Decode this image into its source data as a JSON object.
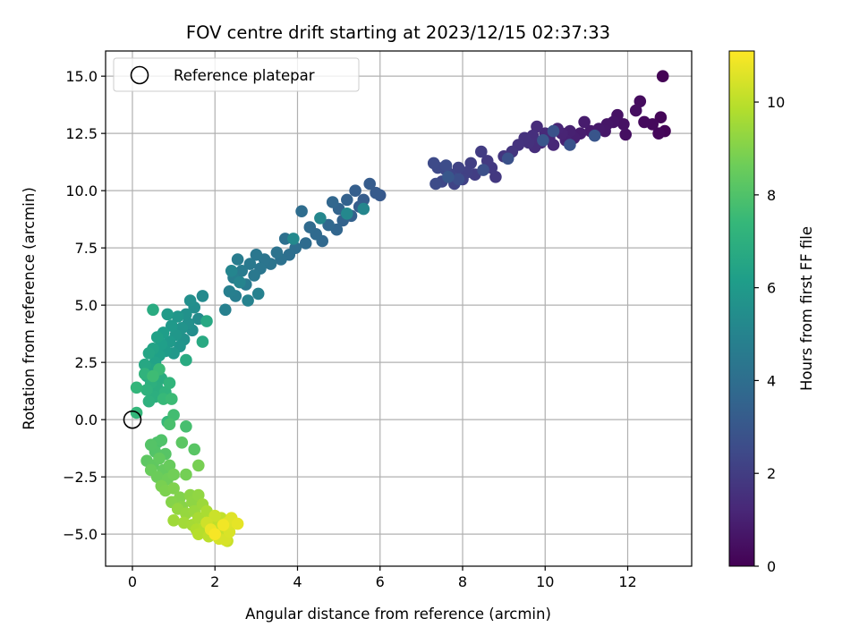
{
  "chart_data": {
    "type": "scatter",
    "title": "FOV centre drift starting at 2023/12/15 02:37:33",
    "xlabel": "Angular distance from reference (arcmin)",
    "ylabel": "Rotation from reference (arcmin)",
    "xlim": [
      -0.65,
      13.55
    ],
    "ylim": [
      -6.4,
      16.1
    ],
    "xticks": [
      0,
      2,
      4,
      6,
      8,
      10,
      12
    ],
    "yticks": [
      -5.0,
      -2.5,
      0.0,
      2.5,
      5.0,
      7.5,
      10.0,
      12.5,
      15.0
    ],
    "xtick_labels": [
      "0",
      "2",
      "4",
      "6",
      "8",
      "10",
      "12"
    ],
    "ytick_labels": [
      "−5.0",
      "−2.5",
      "0.0",
      "2.5",
      "5.0",
      "7.5",
      "10.0",
      "12.5",
      "15.0"
    ],
    "grid": true,
    "legend": {
      "placement": "top-left",
      "entries": [
        "Reference platepar"
      ]
    },
    "reference_point": {
      "x": 0,
      "y": 0
    },
    "colorbar": {
      "label": "Hours from first FF file",
      "colormap": "viridis",
      "range": [
        0,
        11.1
      ],
      "ticks": [
        0,
        2,
        4,
        6,
        8,
        10
      ],
      "tick_labels": [
        "0",
        "2",
        "4",
        "6",
        "8",
        "10"
      ]
    },
    "series": [
      {
        "values_format": "[x, y, hours]",
        "points": [
          [
            12.85,
            15.0,
            0.05
          ],
          [
            12.9,
            12.6,
            0.1
          ],
          [
            12.8,
            13.2,
            0.15
          ],
          [
            12.75,
            12.5,
            0.2
          ],
          [
            12.6,
            12.9,
            0.25
          ],
          [
            12.4,
            13.0,
            0.3
          ],
          [
            12.3,
            13.9,
            0.35
          ],
          [
            12.2,
            13.5,
            0.4
          ],
          [
            11.95,
            12.45,
            0.45
          ],
          [
            11.9,
            12.9,
            0.5
          ],
          [
            11.75,
            13.3,
            0.55
          ],
          [
            11.65,
            13.0,
            0.6
          ],
          [
            11.5,
            12.9,
            0.65
          ],
          [
            11.45,
            12.6,
            0.7
          ],
          [
            11.3,
            12.7,
            0.75
          ],
          [
            11.1,
            12.6,
            0.8
          ],
          [
            10.95,
            13.0,
            0.85
          ],
          [
            10.85,
            12.5,
            0.9
          ],
          [
            10.7,
            12.3,
            0.95
          ],
          [
            10.6,
            12.6,
            1.0
          ],
          [
            10.5,
            12.2,
            1.05
          ],
          [
            10.4,
            12.5,
            1.1
          ],
          [
            10.3,
            12.7,
            1.15
          ],
          [
            10.2,
            12.0,
            1.2
          ],
          [
            10.1,
            12.3,
            1.25
          ],
          [
            10.0,
            12.5,
            1.3
          ],
          [
            9.9,
            12.1,
            1.35
          ],
          [
            9.8,
            12.8,
            1.4
          ],
          [
            9.75,
            11.9,
            1.45
          ],
          [
            9.7,
            12.4,
            1.5
          ],
          [
            9.6,
            12.1,
            1.55
          ],
          [
            9.5,
            12.3,
            1.6
          ],
          [
            9.35,
            12.0,
            1.65
          ],
          [
            9.2,
            11.7,
            1.7
          ],
          [
            9.0,
            11.5,
            1.75
          ],
          [
            8.8,
            10.6,
            1.8
          ],
          [
            8.7,
            11.0,
            1.85
          ],
          [
            8.6,
            11.3,
            1.9
          ],
          [
            8.45,
            11.7,
            1.95
          ],
          [
            8.3,
            10.7,
            2.0
          ],
          [
            8.2,
            11.2,
            2.05
          ],
          [
            8.1,
            10.8,
            2.1
          ],
          [
            8.0,
            10.5,
            2.15
          ],
          [
            7.9,
            11.0,
            2.2
          ],
          [
            7.8,
            10.3,
            2.25
          ],
          [
            7.7,
            10.7,
            2.3
          ],
          [
            7.6,
            10.9,
            2.35
          ],
          [
            7.5,
            10.4,
            2.4
          ],
          [
            7.4,
            11.0,
            2.45
          ],
          [
            7.3,
            11.2,
            2.5
          ],
          [
            7.35,
            10.3,
            2.55
          ],
          [
            7.6,
            11.1,
            2.6
          ],
          [
            7.9,
            10.5,
            2.65
          ],
          [
            8.5,
            10.9,
            2.7
          ],
          [
            9.1,
            11.4,
            2.75
          ],
          [
            10.2,
            12.6,
            2.8
          ],
          [
            10.6,
            12.0,
            2.85
          ],
          [
            11.2,
            12.4,
            2.9
          ],
          [
            9.95,
            12.2,
            2.95
          ],
          [
            7.65,
            10.6,
            3.0
          ],
          [
            6.0,
            9.8,
            3.1
          ],
          [
            5.9,
            9.9,
            3.15
          ],
          [
            5.75,
            10.3,
            3.2
          ],
          [
            5.6,
            9.6,
            3.25
          ],
          [
            5.5,
            9.3,
            3.3
          ],
          [
            5.4,
            10.0,
            3.35
          ],
          [
            5.3,
            8.9,
            3.4
          ],
          [
            5.2,
            9.6,
            3.45
          ],
          [
            5.1,
            8.7,
            3.5
          ],
          [
            5.0,
            9.2,
            3.55
          ],
          [
            4.95,
            8.3,
            3.6
          ],
          [
            4.85,
            9.5,
            3.65
          ],
          [
            4.75,
            8.5,
            3.7
          ],
          [
            4.6,
            7.8,
            3.75
          ],
          [
            4.45,
            8.1,
            3.8
          ],
          [
            4.3,
            8.4,
            3.85
          ],
          [
            4.2,
            7.7,
            3.9
          ],
          [
            4.1,
            9.1,
            3.95
          ],
          [
            3.95,
            7.5,
            4.0
          ],
          [
            3.8,
            7.2,
            4.05
          ],
          [
            3.7,
            7.9,
            4.1
          ],
          [
            3.6,
            7.0,
            4.15
          ],
          [
            3.5,
            7.3,
            4.2
          ],
          [
            3.35,
            6.8,
            4.25
          ],
          [
            3.2,
            7.0,
            4.3
          ],
          [
            3.1,
            6.6,
            4.35
          ],
          [
            3.0,
            7.2,
            4.4
          ],
          [
            2.95,
            6.3,
            4.45
          ],
          [
            2.85,
            6.8,
            4.5
          ],
          [
            2.75,
            5.9,
            4.55
          ],
          [
            2.65,
            6.5,
            4.6
          ],
          [
            2.55,
            7.0,
            4.65
          ],
          [
            2.5,
            5.4,
            4.7
          ],
          [
            2.45,
            6.2,
            4.75
          ],
          [
            2.35,
            5.6,
            4.8
          ],
          [
            2.25,
            4.8,
            4.85
          ],
          [
            3.05,
            5.5,
            4.9
          ],
          [
            2.8,
            5.2,
            4.95
          ],
          [
            2.6,
            6.0,
            5.0
          ],
          [
            2.4,
            6.5,
            5.05
          ],
          [
            5.6,
            9.2,
            5.1
          ],
          [
            4.55,
            8.8,
            5.15
          ],
          [
            5.2,
            9.0,
            5.2
          ],
          [
            3.9,
            7.9,
            5.25
          ],
          [
            1.7,
            5.4,
            5.3
          ],
          [
            1.6,
            4.4,
            5.35
          ],
          [
            1.5,
            4.9,
            5.4
          ],
          [
            1.45,
            3.9,
            5.45
          ],
          [
            1.4,
            5.2,
            5.5
          ],
          [
            1.35,
            4.2,
            5.55
          ],
          [
            1.3,
            4.6,
            5.6
          ],
          [
            1.25,
            3.5,
            5.65
          ],
          [
            1.2,
            4.0,
            5.7
          ],
          [
            1.15,
            3.2,
            5.75
          ],
          [
            1.1,
            4.5,
            5.8
          ],
          [
            1.05,
            3.7,
            5.85
          ],
          [
            1.0,
            2.9,
            5.9
          ],
          [
            0.95,
            4.1,
            5.95
          ],
          [
            0.9,
            3.4,
            6.0
          ],
          [
            0.85,
            4.6,
            6.05
          ],
          [
            0.8,
            3.0,
            6.1
          ],
          [
            0.75,
            3.8,
            6.15
          ],
          [
            0.7,
            3.3,
            6.2
          ],
          [
            0.65,
            2.8,
            6.25
          ],
          [
            0.6,
            3.6,
            6.3
          ],
          [
            0.55,
            2.5,
            6.35
          ],
          [
            0.5,
            3.1,
            6.4
          ],
          [
            0.45,
            2.2,
            6.45
          ],
          [
            0.4,
            2.9,
            6.5
          ],
          [
            0.35,
            1.9,
            6.55
          ],
          [
            0.3,
            2.4,
            6.6
          ],
          [
            1.8,
            4.3,
            6.65
          ],
          [
            1.7,
            3.4,
            6.7
          ],
          [
            1.3,
            2.6,
            6.75
          ],
          [
            0.5,
            4.8,
            6.8
          ],
          [
            0.7,
            1.8,
            6.85
          ],
          [
            0.6,
            1.4,
            6.9
          ],
          [
            0.55,
            1.0,
            6.95
          ],
          [
            0.45,
            1.6,
            7.0
          ],
          [
            0.4,
            0.8,
            7.05
          ],
          [
            0.35,
            1.3,
            7.1
          ],
          [
            0.3,
            2.0,
            7.15
          ],
          [
            0.8,
            1.2,
            7.2
          ],
          [
            0.9,
            1.6,
            7.25
          ],
          [
            0.1,
            1.4,
            7.3
          ],
          [
            0.1,
            0.3,
            7.35
          ],
          [
            0.85,
            -0.1,
            7.4
          ],
          [
            0.75,
            0.9,
            7.45
          ],
          [
            0.65,
            2.2,
            7.5
          ],
          [
            0.95,
            0.9,
            7.55
          ],
          [
            0.5,
            1.9,
            7.6
          ],
          [
            1.0,
            0.2,
            7.7
          ],
          [
            1.3,
            -0.3,
            7.8
          ],
          [
            0.9,
            -0.2,
            7.85
          ],
          [
            0.6,
            -1.0,
            7.9
          ],
          [
            0.7,
            -0.9,
            8.0
          ],
          [
            0.55,
            -1.4,
            8.05
          ],
          [
            0.45,
            -1.1,
            8.1
          ],
          [
            0.8,
            -1.5,
            8.15
          ],
          [
            1.5,
            -1.3,
            8.2
          ],
          [
            1.2,
            -1.0,
            8.25
          ],
          [
            0.35,
            -1.8,
            8.3
          ],
          [
            0.5,
            -2.0,
            8.35
          ],
          [
            0.65,
            -1.7,
            8.4
          ],
          [
            0.75,
            -2.2,
            8.45
          ],
          [
            0.9,
            -2.0,
            8.5
          ],
          [
            0.45,
            -2.2,
            8.55
          ],
          [
            0.6,
            -2.5,
            8.6
          ],
          [
            0.85,
            -2.6,
            8.65
          ],
          [
            1.0,
            -2.4,
            8.7
          ],
          [
            1.3,
            -2.4,
            8.75
          ],
          [
            1.6,
            -2.0,
            8.8
          ],
          [
            0.7,
            -2.9,
            8.85
          ],
          [
            0.8,
            -3.1,
            8.9
          ],
          [
            1.0,
            -3.0,
            8.95
          ],
          [
            1.15,
            -3.4,
            9.0
          ],
          [
            0.95,
            -3.6,
            9.05
          ],
          [
            1.2,
            -3.8,
            9.1
          ],
          [
            1.4,
            -3.3,
            9.15
          ],
          [
            1.45,
            -3.6,
            9.2
          ],
          [
            1.6,
            -3.3,
            9.25
          ],
          [
            1.1,
            -3.9,
            9.3
          ],
          [
            1.3,
            -4.1,
            9.35
          ],
          [
            1.5,
            -4.0,
            9.4
          ],
          [
            1.7,
            -3.7,
            9.45
          ],
          [
            1.0,
            -4.4,
            9.5
          ],
          [
            1.25,
            -4.5,
            9.55
          ],
          [
            1.45,
            -4.6,
            9.6
          ],
          [
            1.6,
            -4.3,
            9.65
          ],
          [
            1.8,
            -4.0,
            9.7
          ],
          [
            1.9,
            -4.4,
            9.75
          ],
          [
            1.55,
            -4.8,
            9.8
          ],
          [
            1.75,
            -4.7,
            9.85
          ],
          [
            1.6,
            -5.0,
            9.9
          ],
          [
            2.0,
            -4.9,
            9.95
          ],
          [
            1.85,
            -5.1,
            10.0
          ],
          [
            2.05,
            -4.6,
            10.05
          ],
          [
            2.15,
            -4.3,
            10.1
          ],
          [
            2.2,
            -5.0,
            10.15
          ],
          [
            2.3,
            -5.3,
            10.2
          ],
          [
            2.0,
            -4.2,
            10.25
          ],
          [
            1.8,
            -4.5,
            10.3
          ],
          [
            2.1,
            -5.2,
            10.4
          ],
          [
            2.25,
            -5.25,
            10.45
          ],
          [
            2.35,
            -4.9,
            10.5
          ],
          [
            2.3,
            -4.5,
            10.55
          ],
          [
            2.4,
            -4.3,
            10.6
          ],
          [
            2.55,
            -4.55,
            10.7
          ],
          [
            1.9,
            -4.8,
            10.8
          ],
          [
            2.2,
            -4.6,
            10.9
          ],
          [
            2.0,
            -5.0,
            11.0
          ]
        ]
      }
    ]
  }
}
